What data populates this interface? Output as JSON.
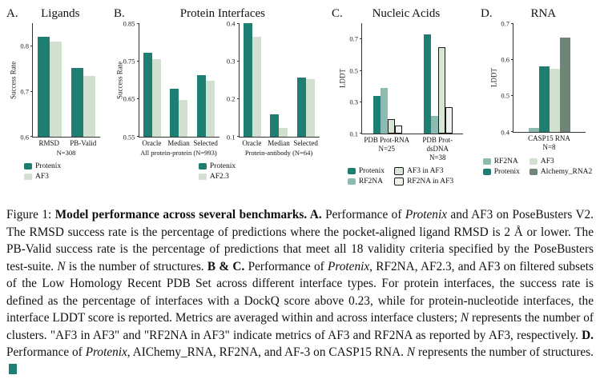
{
  "chart_data": [
    {
      "id": "A",
      "label": "A.",
      "title": "Ligands",
      "type": "bar",
      "ylabel": "Success Rate",
      "ylim": [
        0.6,
        0.85
      ],
      "yticks": [
        "0.6",
        "0.7",
        "0.8"
      ],
      "categories": [
        "RMSD",
        "PB-Valid"
      ],
      "xlabel": "N=308",
      "series": [
        {
          "name": "Protenix",
          "color": "#1e7e71",
          "values": [
            0.82,
            0.752
          ]
        },
        {
          "name": "AF3",
          "color": "#d2e0cf",
          "values": [
            0.81,
            0.734
          ]
        }
      ],
      "legend": [
        {
          "label": "Protenix",
          "color": "#1e7e71"
        },
        {
          "label": "AF3",
          "color": "#d2e0cf"
        }
      ]
    },
    {
      "id": "B",
      "label": "B.",
      "title": "Protein Interfaces",
      "type": "bar",
      "subplots": [
        {
          "ylabel": "Success Rate",
          "ylim": [
            0.55,
            0.85
          ],
          "yticks": [
            "0.55",
            "0.65",
            "0.75",
            "0.85"
          ],
          "categories": [
            "Oracle",
            "Median",
            "Selected"
          ],
          "xlabel": "All protein-protein (N=993)",
          "series": [
            {
              "name": "Protenix",
              "color": "#1e7e71",
              "values": [
                0.772,
                0.676,
                0.712
              ]
            },
            {
              "name": "AF2.3",
              "color": "#d2e0cf",
              "values": [
                0.754,
                0.648,
                0.697
              ]
            }
          ]
        },
        {
          "ylim": [
            0.1,
            0.4
          ],
          "yticks": [
            "0.1",
            "0.2",
            "0.3",
            "0.4"
          ],
          "categories": [
            "Oracle",
            "Median",
            "Selected"
          ],
          "xlabel": "Protein-antibody (N=64)",
          "series": [
            {
              "name": "Protenix",
              "color": "#1e7e71",
              "values": [
                0.4,
                0.16,
                0.257
              ]
            },
            {
              "name": "AF2.3",
              "color": "#d2e0cf",
              "values": [
                0.365,
                0.123,
                0.252
              ]
            }
          ]
        }
      ],
      "legend": [
        {
          "label": "Protenix",
          "color": "#1e7e71"
        },
        {
          "label": "AF2.3",
          "color": "#d2e0cf"
        }
      ]
    },
    {
      "id": "C",
      "label": "C.",
      "title": "Nucleic Acids",
      "type": "bar",
      "ylabel": "LDDT",
      "ylim": [
        0.1,
        0.8
      ],
      "yticks": [
        "0.1",
        "0.3",
        "0.5",
        "0.7"
      ],
      "categories": [
        "PDB Prot-RNA",
        "PDB Prot-dsDNA"
      ],
      "cat_sub": [
        "N=25",
        "N=38"
      ],
      "series": [
        {
          "name": "Protenix",
          "color": "#1e7e71",
          "values": [
            0.34,
            0.73
          ]
        },
        {
          "name": "RF2NA",
          "color": "#8cbcb1",
          "values": [
            0.39,
            0.21
          ]
        },
        {
          "name": "AF3 in AF3",
          "color": "#d9e5d5",
          "border": true,
          "values": [
            0.19,
            0.65
          ]
        },
        {
          "name": "RF2NA in AF3",
          "color": "#eef3ec",
          "border": true,
          "values": [
            0.15,
            0.27
          ]
        }
      ],
      "legend": [
        {
          "label": "Protenix",
          "color": "#1e7e71"
        },
        {
          "label": "AF3 in AF3",
          "color": "#d9e5d5",
          "border": true
        },
        {
          "label": "RF2NA",
          "color": "#8cbcb1"
        },
        {
          "label": "RF2NA in AF3",
          "color": "#eef3ec",
          "border": true
        }
      ]
    },
    {
      "id": "D",
      "label": "D.",
      "title": "RNA",
      "type": "bar",
      "ylabel": "LDDT",
      "ylim": [
        0.4,
        0.7
      ],
      "yticks": [
        "0.4",
        "0.5",
        "0.6",
        "0.7"
      ],
      "categories": [
        "CASP15 RNA"
      ],
      "cat_sub": [
        "N=8"
      ],
      "series": [
        {
          "name": "RF2NA",
          "color": "#8cbcb1",
          "values": [
            0.412
          ]
        },
        {
          "name": "Protenix",
          "color": "#1e7e71",
          "values": [
            0.58
          ]
        },
        {
          "name": "AF3",
          "color": "#d2e0cf",
          "values": [
            0.575
          ]
        },
        {
          "name": "Alchemy_RNA2",
          "color": "#6f8577",
          "values": [
            0.66
          ]
        }
      ],
      "legend": [
        {
          "label": "RF2NA",
          "color": "#8cbcb1"
        },
        {
          "label": "AF3",
          "color": "#d2e0cf"
        },
        {
          "label": "Protenix",
          "color": "#1e7e71"
        },
        {
          "label": "Alchemy_RNA2",
          "color": "#6f8577"
        }
      ]
    }
  ],
  "caption": {
    "end_marker_color": "#1e7e71",
    "segments": [
      {
        "t": "Figure 1: ",
        "b": 0,
        "i": 0
      },
      {
        "t": "Model performance across several benchmarks. ",
        "b": 1,
        "i": 0
      },
      {
        "t": "A.",
        "b": 1,
        "i": 0
      },
      {
        "t": " Performance of ",
        "b": 0,
        "i": 0
      },
      {
        "t": "Protenix",
        "b": 0,
        "i": 1
      },
      {
        "t": " and AF3 on PoseBusters V2. The RMSD success rate is the percentage of predictions where the pocket-aligned ligand RMSD is 2 Å or lower. The PB-Valid success rate is the percentage of predictions that meet all 18 validity criteria specified by the PoseBusters test-suite. ",
        "b": 0,
        "i": 0
      },
      {
        "t": "N",
        "b": 0,
        "i": 1
      },
      {
        "t": " is the number of structures. ",
        "b": 0,
        "i": 0
      },
      {
        "t": "B & C.",
        "b": 1,
        "i": 0
      },
      {
        "t": " Performance of ",
        "b": 0,
        "i": 0
      },
      {
        "t": "Protenix",
        "b": 0,
        "i": 1
      },
      {
        "t": ", RF2NA, AF2.3, and AF3 on filtered subsets of the Low Homology Recent PDB Set across different interface types. For protein interfaces, the success rate is defined as the percentage of interfaces with a DockQ score above 0.23, while for protein-nucleotide interfaces, the interface LDDT score is reported. Metrics are averaged within and across interface clusters; ",
        "b": 0,
        "i": 0
      },
      {
        "t": "N",
        "b": 0,
        "i": 1
      },
      {
        "t": " represents the number of clusters. \"AF3 in AF3\" and \"RF2NA in AF3\" indicate metrics of AF3 and RF2NA as reported by AF3, respectively. ",
        "b": 0,
        "i": 0
      },
      {
        "t": "D.",
        "b": 1,
        "i": 0
      },
      {
        "t": " Performance of ",
        "b": 0,
        "i": 0
      },
      {
        "t": "Protenix",
        "b": 0,
        "i": 1
      },
      {
        "t": ", AIChemy_RNA, RF2NA, and AF-3 on CASP15 RNA. ",
        "b": 0,
        "i": 0
      },
      {
        "t": "N",
        "b": 0,
        "i": 1
      },
      {
        "t": " represents the number of structures.",
        "b": 0,
        "i": 0
      }
    ]
  }
}
